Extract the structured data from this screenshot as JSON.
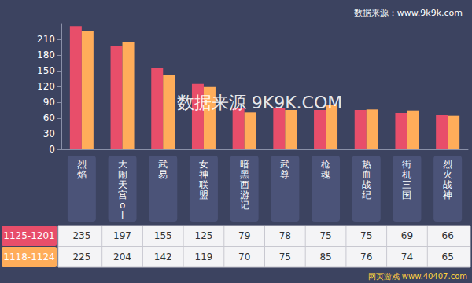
{
  "chart_data": {
    "type": "bar",
    "categories": [
      "烈焰",
      "大闹天宫ol",
      "武易",
      "女神联盟",
      "暗黑西游记",
      "武尊",
      "枪魂",
      "热血战纪",
      "街机三国",
      "烈火战神"
    ],
    "series": [
      {
        "name": "1125-1201",
        "color": "#e84e6a",
        "values": [
          235,
          197,
          155,
          125,
          79,
          78,
          75,
          75,
          69,
          66
        ]
      },
      {
        "name": "1118-1124",
        "color": "#ffad5a",
        "values": [
          225,
          204,
          142,
          119,
          70,
          75,
          85,
          76,
          74,
          65
        ]
      }
    ],
    "ylim": [
      0,
      240
    ],
    "yticks": [
      0,
      30,
      60,
      90,
      120,
      150,
      180,
      210
    ],
    "grid": false,
    "annotations": [
      "数据来源：www.9k9k.com",
      "数据来源 9K9K.COM",
      "网页游戏 www.40407.com"
    ]
  }
}
